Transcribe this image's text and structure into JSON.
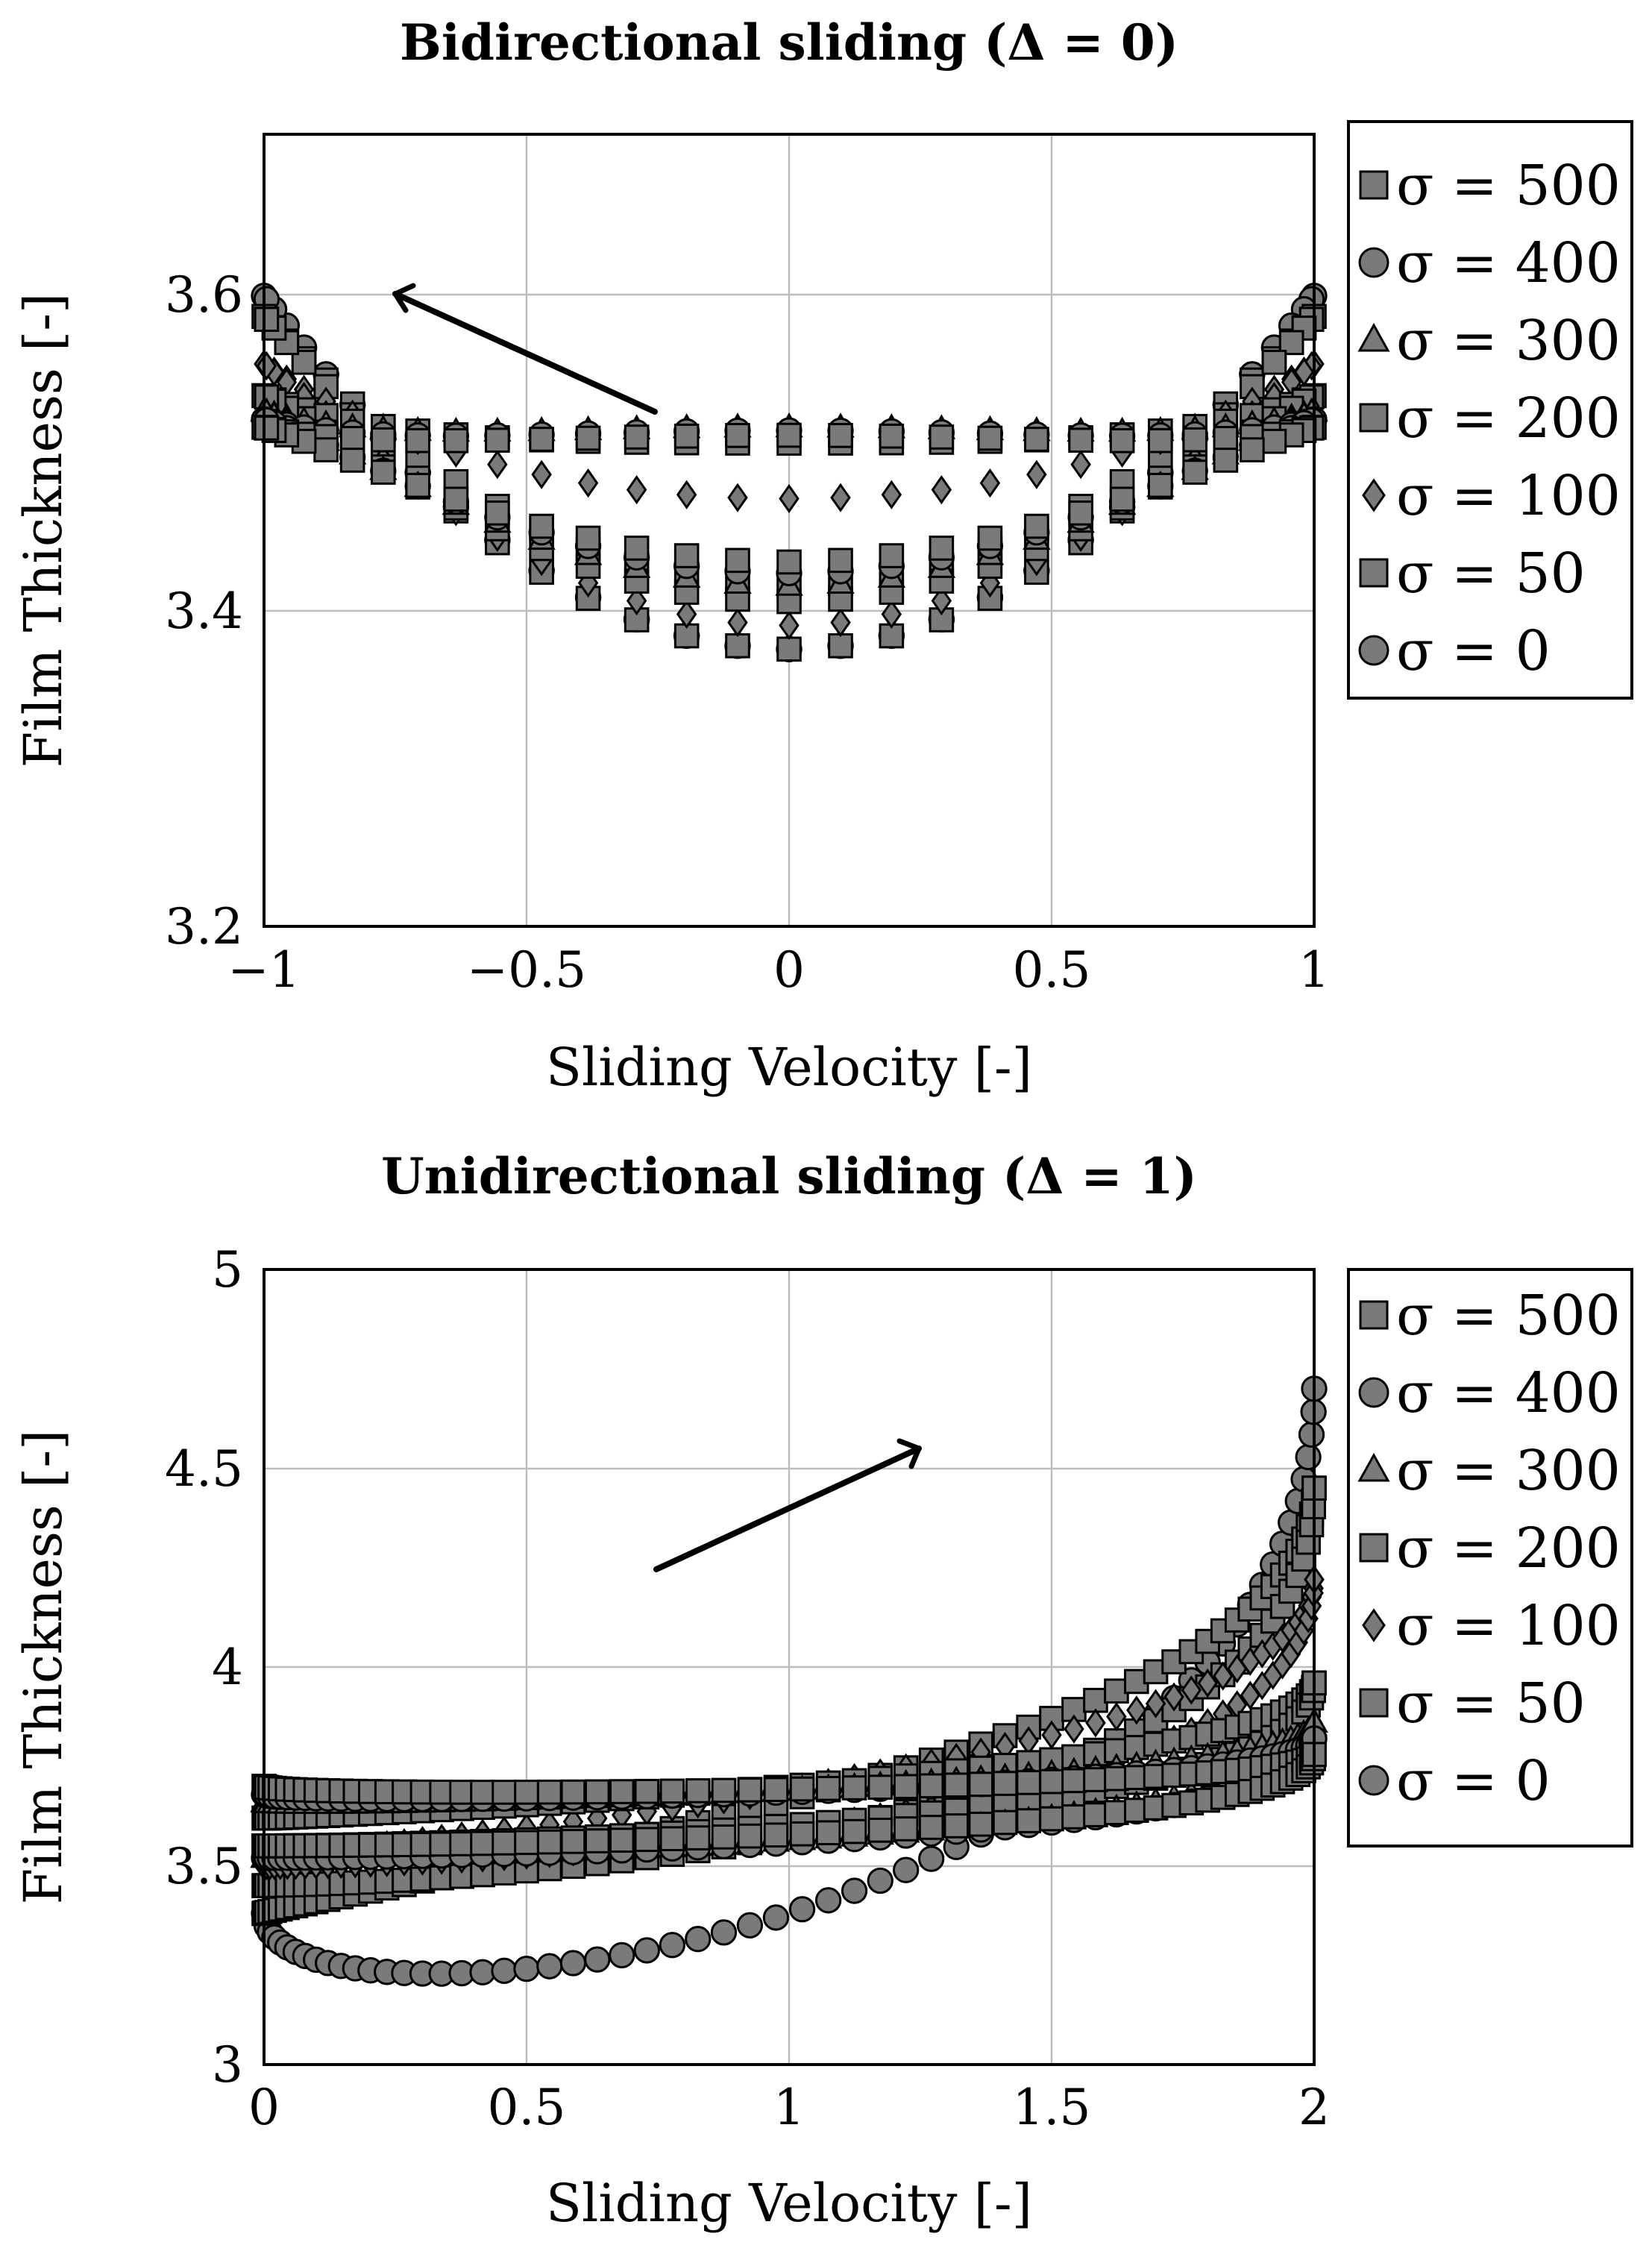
{
  "chart_data": [
    {
      "type": "scatter",
      "title": "Bidirectional sliding (Δ = 0)",
      "xlabel": "Sliding Velocity [-]",
      "ylabel": "Film Thickness [-]",
      "xlim": [
        -1,
        1
      ],
      "ylim": [
        3.2,
        3.7
      ],
      "xticks": [
        -1,
        -0.5,
        0,
        0.5,
        1
      ],
      "xtick_labels": [
        "−1",
        "−0.5",
        "0",
        "0.5",
        "1"
      ],
      "yticks": [
        3.2,
        3.4,
        3.6
      ],
      "ytick_labels": [
        "3.2",
        "3.4",
        "3.6"
      ],
      "grid": true,
      "legend_position": "outside-right",
      "annotation": "arrow pointing up-left indicating increasing σ",
      "legend": [
        {
          "label": "σ = 500",
          "marker": "square"
        },
        {
          "label": "σ = 400",
          "marker": "circle"
        },
        {
          "label": "σ = 300",
          "marker": "triangle"
        },
        {
          "label": "σ = 200",
          "marker": "square"
        },
        {
          "label": "σ = 100",
          "marker": "diamond"
        },
        {
          "label": "σ = 50",
          "marker": "square"
        },
        {
          "label": "σ = 0",
          "marker": "circle"
        }
      ],
      "series": [
        {
          "name": "σ = 0",
          "marker": "circle",
          "y_min": 3.375,
          "y_max": 3.598,
          "loop_half_width": 0.0
        },
        {
          "name": "σ = 50",
          "marker": "square",
          "y_min": 3.395,
          "y_max": 3.585,
          "loop_half_width": 0.02
        },
        {
          "name": "σ = 100",
          "marker": "diamond",
          "y_min": 3.43,
          "y_max": 3.555,
          "loop_half_width": 0.04
        },
        {
          "name": "σ = 200",
          "marker": "square",
          "y_min": 3.455,
          "y_max": 3.535,
          "loop_half_width": 0.05
        },
        {
          "name": "σ = 300",
          "marker": "triangle",
          "y_min": 3.465,
          "y_max": 3.525,
          "loop_half_width": 0.05
        },
        {
          "name": "σ = 400",
          "marker": "circle",
          "y_min": 3.468,
          "y_max": 3.52,
          "loop_half_width": 0.045
        },
        {
          "name": "σ = 500",
          "marker": "square",
          "y_min": 3.47,
          "y_max": 3.515,
          "loop_half_width": 0.04
        }
      ]
    },
    {
      "type": "scatter",
      "title": "Unidirectional sliding (Δ = 1)",
      "xlabel": "Sliding Velocity [-]",
      "ylabel": "Film Thickness [-]",
      "xlim": [
        0,
        2
      ],
      "ylim": [
        3,
        5
      ],
      "xticks": [
        0,
        0.5,
        1,
        1.5,
        2
      ],
      "xtick_labels": [
        "0",
        "0.5",
        "1",
        "1.5",
        "2"
      ],
      "yticks": [
        3,
        3.5,
        4,
        4.5,
        5
      ],
      "ytick_labels": [
        "3",
        "3.5",
        "4",
        "4.5",
        "5"
      ],
      "grid": true,
      "legend_position": "outside-right",
      "annotation": "arrow pointing up-right indicating increasing σ",
      "legend": [
        {
          "label": "σ = 500",
          "marker": "square"
        },
        {
          "label": "σ = 400",
          "marker": "circle"
        },
        {
          "label": "σ = 300",
          "marker": "triangle"
        },
        {
          "label": "σ = 200",
          "marker": "square"
        },
        {
          "label": "σ = 100",
          "marker": "diamond"
        },
        {
          "label": "σ = 50",
          "marker": "square"
        },
        {
          "label": "σ = 0",
          "marker": "circle"
        }
      ],
      "series": [
        {
          "name": "σ = 0",
          "marker": "circle",
          "y_start": 3.38,
          "y_end": 4.7,
          "upper": 3.38,
          "lower": 3.38
        },
        {
          "name": "σ = 50",
          "marker": "square",
          "y_start": 3.38,
          "y_end": 4.45,
          "upper": 4.45,
          "lower": 3.45
        },
        {
          "name": "σ = 100",
          "marker": "diamond",
          "y_start": 3.52,
          "y_end": 4.22,
          "upper": 4.23,
          "lower": 3.5
        },
        {
          "name": "σ = 200",
          "marker": "square",
          "y_start": 3.62,
          "y_end": 3.96,
          "upper": 4.01,
          "lower": 3.55
        },
        {
          "name": "σ = 300",
          "marker": "triangle",
          "y_start": 3.66,
          "y_end": 3.86,
          "upper": 3.92,
          "lower": 3.52
        },
        {
          "name": "σ = 400",
          "marker": "circle",
          "y_start": 3.68,
          "y_end": 3.82,
          "upper": 3.86,
          "lower": 3.52
        },
        {
          "name": "σ = 500",
          "marker": "square",
          "y_start": 3.7,
          "y_end": 3.78,
          "upper": 3.82,
          "lower": 3.55
        }
      ]
    }
  ]
}
